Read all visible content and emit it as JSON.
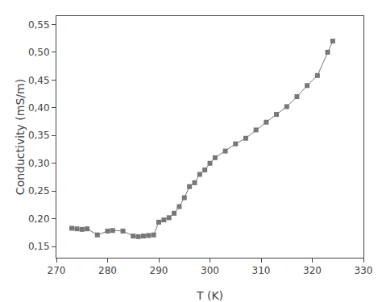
{
  "chart_data": {
    "type": "line",
    "x": [
      273,
      274,
      275,
      276,
      278,
      280,
      281,
      283,
      285,
      286,
      287,
      288,
      289,
      290,
      291,
      292,
      293,
      294,
      295,
      296,
      297,
      298,
      299,
      300,
      301,
      303,
      305,
      307,
      309,
      311,
      313,
      315,
      317,
      319,
      321,
      323,
      324
    ],
    "values": [
      0.183,
      0.182,
      0.181,
      0.182,
      0.171,
      0.178,
      0.179,
      0.178,
      0.169,
      0.168,
      0.169,
      0.17,
      0.171,
      0.194,
      0.198,
      0.202,
      0.21,
      0.222,
      0.238,
      0.258,
      0.265,
      0.28,
      0.288,
      0.3,
      0.31,
      0.322,
      0.335,
      0.345,
      0.36,
      0.374,
      0.388,
      0.402,
      0.42,
      0.44,
      0.458,
      0.5,
      0.52
    ],
    "xlabel": "T (K)",
    "ylabel": "Conductivity (mS/m)",
    "xlim": [
      270,
      330
    ],
    "ylim": [
      0.13,
      0.565
    ],
    "xticks": [
      270,
      280,
      290,
      300,
      310,
      320,
      330
    ],
    "yticks": [
      {
        "value": 0.15,
        "label": "0,15"
      },
      {
        "value": 0.2,
        "label": "0,20"
      },
      {
        "value": 0.25,
        "label": "0,25"
      },
      {
        "value": 0.3,
        "label": "0,30"
      },
      {
        "value": 0.35,
        "label": "0,35"
      },
      {
        "value": 0.4,
        "label": "0,40"
      },
      {
        "value": 0.45,
        "label": "0,45"
      },
      {
        "value": 0.5,
        "label": "0,50"
      },
      {
        "value": 0.55,
        "label": "0,55"
      }
    ],
    "color": "#777777",
    "marker": "square",
    "grid": false
  }
}
